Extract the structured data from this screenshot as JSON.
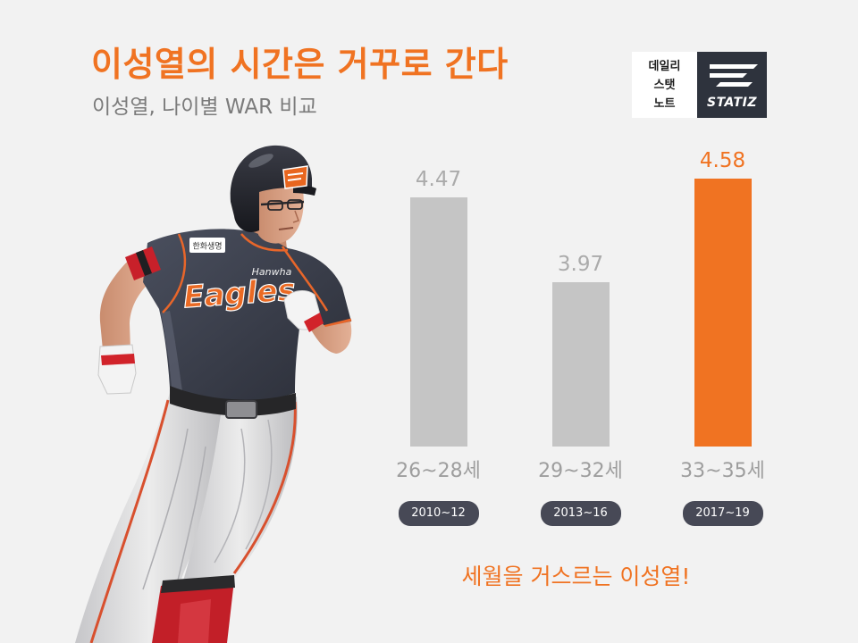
{
  "logo": {
    "left_lines": [
      "데일리",
      "스탯",
      "노트"
    ],
    "right_text": "STATIZ"
  },
  "photo": {
    "chest_logo": "Eagles",
    "chest_brand": "Hanwha",
    "sleeve_patch": "한화생명"
  },
  "colors": {
    "accent": "#F07322",
    "background": "#F2F2F2",
    "subtitle": "#7B7B7B",
    "category_label": "#9E9E9E",
    "period_pill": "#474956",
    "logo_dark": "#2E333D"
  },
  "chart_data": {
    "type": "bar",
    "title": "이성열의 시간은 거꾸로 간다",
    "subtitle": "이성열, 나이별 WAR 비교",
    "categories": [
      "26~28세",
      "29~32세",
      "33~35세"
    ],
    "periods": [
      "2010~12",
      "2013~16",
      "2017~19"
    ],
    "values": [
      4.47,
      3.97,
      4.58
    ],
    "bar_colors": [
      "#C5C5C5",
      "#C5C5C5",
      "#F07322"
    ],
    "value_label_colors": [
      "#ABABAB",
      "#ABABAB",
      "#F07322"
    ],
    "ylim": [
      3,
      4.6
    ],
    "grid": false,
    "legend": "none",
    "annotation": "세월을 거스르는 이성열!"
  }
}
